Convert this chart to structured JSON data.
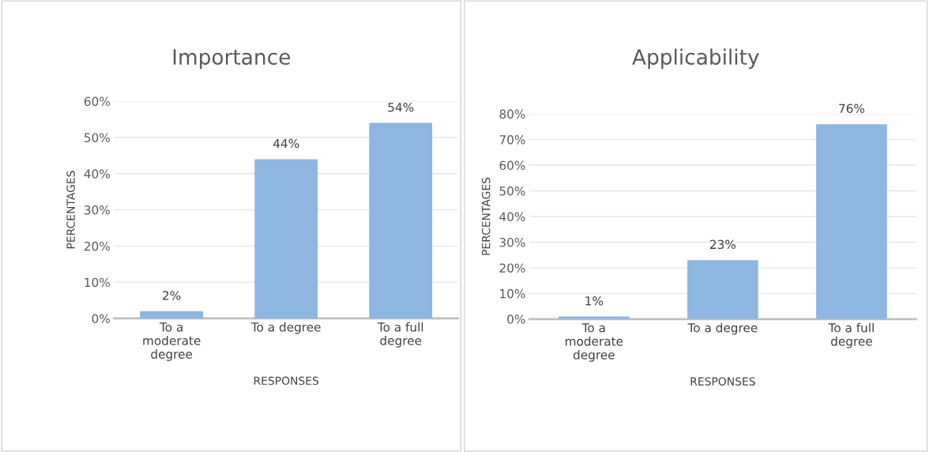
{
  "chart_data": [
    {
      "type": "bar",
      "title": "Importance",
      "xlabel": "RESPONSES",
      "ylabel": "PERCENTAGES",
      "categories": [
        "To a\nmoderate\ndegree",
        "To a degree",
        "To a full\ndegree"
      ],
      "values": [
        2,
        44,
        54
      ],
      "value_labels": [
        "2%",
        "44%",
        "54%"
      ],
      "color": "#8db6e1",
      "ylim": [
        0,
        60
      ],
      "yticks": [
        {
          "value": 0,
          "label": "0%"
        },
        {
          "value": 10,
          "label": "10%"
        },
        {
          "value": 20,
          "label": "20%"
        },
        {
          "value": 30,
          "label": "30%"
        },
        {
          "value": 40,
          "label": "40%"
        },
        {
          "value": 50,
          "label": "50%"
        },
        {
          "value": 60,
          "label": "60%"
        }
      ],
      "grid": "y"
    },
    {
      "type": "bar",
      "title": "Applicability",
      "xlabel": "RESPONSES",
      "ylabel": "PERCENTAGES",
      "categories": [
        "To a\nmoderate\ndegree",
        "To a degree",
        "To a full\ndegree"
      ],
      "values": [
        1,
        23,
        76
      ],
      "value_labels": [
        "1%",
        "23%",
        "76%"
      ],
      "color": "#8db6e1",
      "ylim": [
        0,
        80
      ],
      "yticks": [
        {
          "value": 0,
          "label": "0%"
        },
        {
          "value": 10,
          "label": "10%"
        },
        {
          "value": 20,
          "label": "20%"
        },
        {
          "value": 30,
          "label": "30%"
        },
        {
          "value": 40,
          "label": "40%"
        },
        {
          "value": 50,
          "label": "50%"
        },
        {
          "value": 60,
          "label": "60%"
        },
        {
          "value": 70,
          "label": "70%"
        },
        {
          "value": 80,
          "label": "80%"
        }
      ],
      "grid": "y"
    }
  ]
}
